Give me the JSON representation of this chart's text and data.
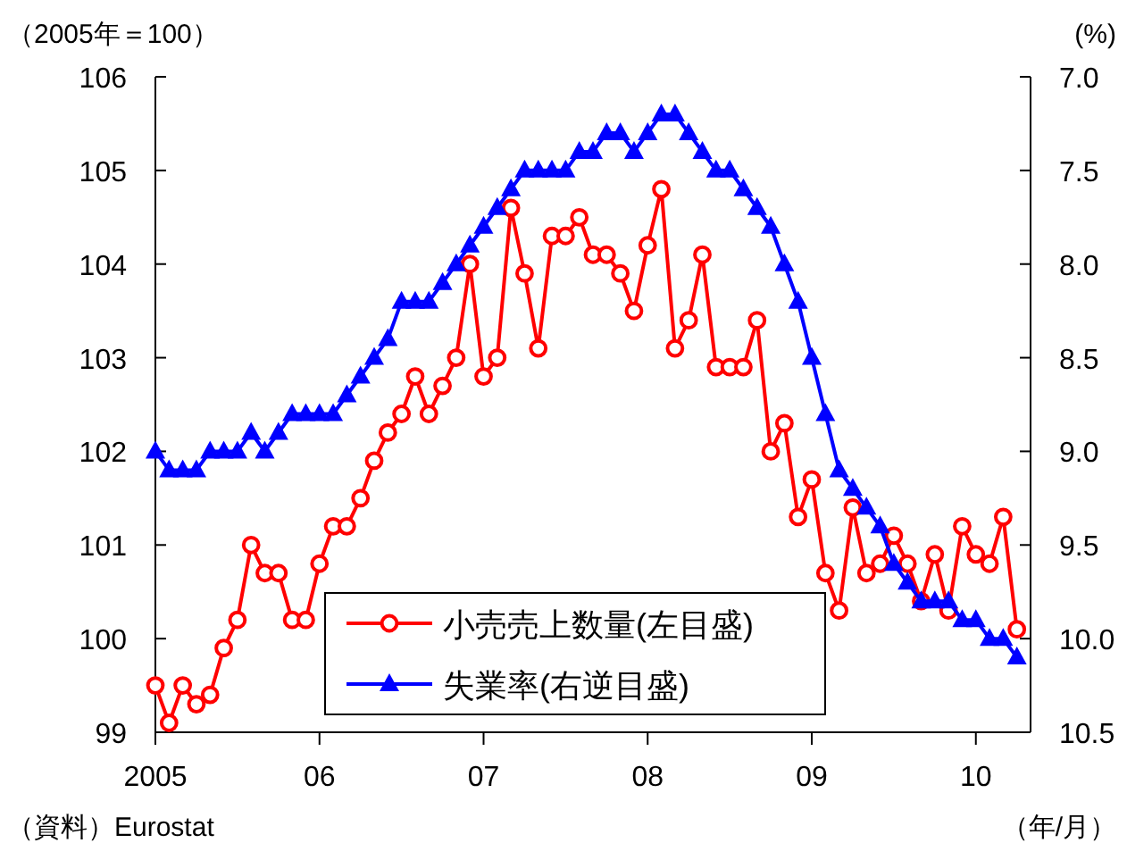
{
  "chart_data": {
    "type": "line",
    "ylabel": "（2005年＝100）",
    "y2label": "(%)",
    "x": [
      "2005-01",
      "2005-02",
      "2005-03",
      "2005-04",
      "2005-05",
      "2005-06",
      "2005-07",
      "2005-08",
      "2005-09",
      "2005-10",
      "2005-11",
      "2005-12",
      "2006-01",
      "2006-02",
      "2006-03",
      "2006-04",
      "2006-05",
      "2006-06",
      "2006-07",
      "2006-08",
      "2006-09",
      "2006-10",
      "2006-11",
      "2006-12",
      "2007-01",
      "2007-02",
      "2007-03",
      "2007-04",
      "2007-05",
      "2007-06",
      "2007-07",
      "2007-08",
      "2007-09",
      "2007-10",
      "2007-11",
      "2007-12",
      "2008-01",
      "2008-02",
      "2008-03",
      "2008-04",
      "2008-05",
      "2008-06",
      "2008-07",
      "2008-08",
      "2008-09",
      "2008-10",
      "2008-11",
      "2008-12",
      "2009-01",
      "2009-02",
      "2009-03",
      "2009-04",
      "2009-05",
      "2009-06",
      "2009-07",
      "2009-08",
      "2009-09",
      "2009-10",
      "2009-11",
      "2009-12",
      "2010-01",
      "2010-02",
      "2010-03",
      "2010-04"
    ],
    "series": [
      {
        "name": "小売売上数量(左目盛)",
        "color": "#ff0000",
        "marker": "circle",
        "values": [
          99.5,
          99.1,
          99.5,
          99.3,
          99.4,
          99.9,
          100.2,
          101.0,
          100.7,
          100.7,
          100.2,
          100.2,
          100.8,
          101.2,
          101.2,
          101.5,
          101.9,
          102.2,
          102.4,
          102.8,
          102.4,
          102.7,
          103.0,
          104.0,
          102.8,
          103.0,
          104.6,
          103.9,
          103.1,
          104.3,
          104.3,
          104.5,
          104.1,
          104.1,
          103.9,
          103.5,
          104.2,
          104.8,
          103.1,
          103.4,
          104.1,
          102.9,
          102.9,
          102.9,
          103.4,
          102.0,
          102.3,
          101.3,
          101.7,
          100.7,
          100.3,
          101.4,
          100.7,
          100.8,
          101.1,
          100.8,
          100.4,
          100.9,
          100.3,
          101.2,
          100.9,
          100.8,
          101.3,
          100.1
        ]
      },
      {
        "name": "失業率(右逆目盛)",
        "color": "#0000ff",
        "marker": "triangle",
        "axis": "y2",
        "values": [
          9.0,
          9.1,
          9.1,
          9.1,
          9.0,
          9.0,
          9.0,
          8.9,
          9.0,
          8.9,
          8.8,
          8.8,
          8.8,
          8.8,
          8.7,
          8.6,
          8.5,
          8.4,
          8.2,
          8.2,
          8.2,
          8.1,
          8.0,
          7.9,
          7.8,
          7.7,
          7.6,
          7.5,
          7.5,
          7.5,
          7.5,
          7.4,
          7.4,
          7.3,
          7.3,
          7.4,
          7.3,
          7.2,
          7.2,
          7.3,
          7.4,
          7.5,
          7.5,
          7.6,
          7.7,
          7.8,
          8.0,
          8.2,
          8.5,
          8.8,
          9.1,
          9.2,
          9.3,
          9.4,
          9.6,
          9.7,
          9.8,
          9.8,
          9.8,
          9.9,
          9.9,
          10.0,
          10.0,
          10.1
        ]
      }
    ],
    "xlim": [
      "2005-01",
      "2010-05"
    ],
    "xticks": [
      {
        "value": "2005-01",
        "label": "2005"
      },
      {
        "value": "2006-01",
        "label": "06"
      },
      {
        "value": "2007-01",
        "label": "07"
      },
      {
        "value": "2008-01",
        "label": "08"
      },
      {
        "value": "2009-01",
        "label": "09"
      },
      {
        "value": "2010-01",
        "label": "10"
      }
    ],
    "ylim": [
      99,
      106
    ],
    "yticks": [
      99,
      100,
      101,
      102,
      103,
      104,
      105,
      106
    ],
    "y2lim": [
      10.5,
      7.0
    ],
    "y2ticks": [
      {
        "value": 7,
        "label": "7.0"
      },
      {
        "value": 7.5,
        "label": "7.5"
      },
      {
        "value": 8,
        "label": "8.0"
      },
      {
        "value": 8.5,
        "label": "8.5"
      },
      {
        "value": 9,
        "label": "9.0"
      },
      {
        "value": 9.5,
        "label": "9.5"
      },
      {
        "value": 10,
        "label": "10.0"
      },
      {
        "value": 10.5,
        "label": "10.5"
      }
    ],
    "legend": "bottom",
    "grid": false,
    "annotations": [
      "（資料）Eurostat",
      "（年/月）"
    ]
  }
}
